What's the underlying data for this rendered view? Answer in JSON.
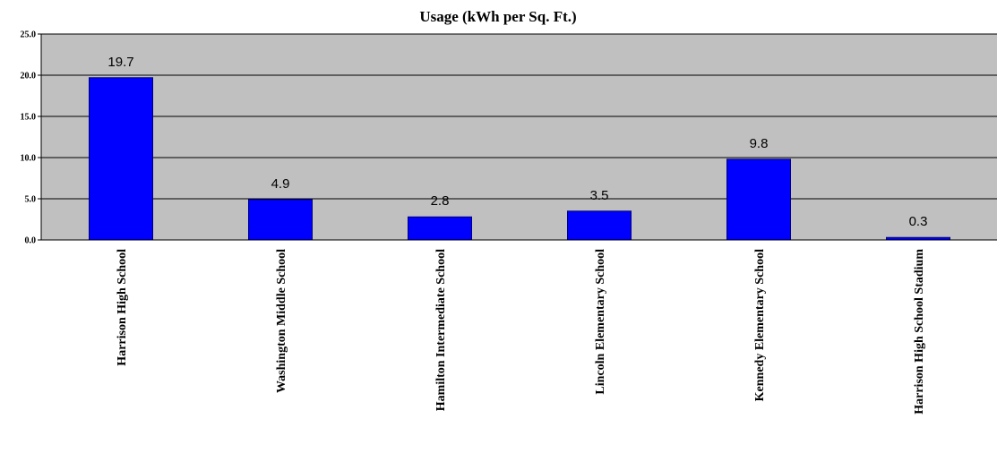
{
  "chart_data": {
    "type": "bar",
    "title": "Usage (kWh per Sq. Ft.)",
    "xlabel": "",
    "ylabel": "",
    "categories": [
      "Harrison High School",
      "Washington Middle School",
      "Hamilton Intermediate School",
      "Lincoln Elementary School",
      "Kennedy Elementary School",
      "Harrison High School Stadium"
    ],
    "values": [
      19.7,
      4.9,
      2.8,
      3.5,
      9.8,
      0.3
    ],
    "data_labels": [
      "19.7",
      "4.9",
      "2.8",
      "3.5",
      "9.8",
      "0.3"
    ],
    "ylim": [
      0,
      25
    ],
    "yticks": [
      "0.0",
      "5.0",
      "10.0",
      "15.0",
      "20.0",
      "25.0"
    ],
    "grid": true,
    "legend": "none",
    "colors": {
      "bar_fill": "#0000ff",
      "bar_stroke": "#000080",
      "plot_background": "#c0c0c0",
      "gridline": "#000000"
    }
  }
}
